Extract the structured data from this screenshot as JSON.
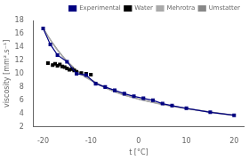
{
  "chart_data": {
    "type": "line",
    "xlabel": "t [°C]",
    "ylabel": "viscosity [mm².s⁻¹]",
    "xlim": [
      -22,
      22
    ],
    "ylim": [
      2,
      18
    ],
    "xticks": [
      -20,
      -10,
      0,
      10,
      20
    ],
    "yticks": [
      2,
      4,
      6,
      8,
      10,
      12,
      14,
      16,
      18
    ],
    "grid": false,
    "legend": "upper right",
    "series": [
      {
        "name": "Experimental",
        "type": "line",
        "color": "#000080",
        "marker": "square",
        "line_style": "solid",
        "x": [
          -20,
          -18.5,
          -17,
          -15,
          -13,
          -11,
          -9,
          -7,
          -5,
          -3,
          -1,
          1,
          3,
          5,
          7,
          10,
          15,
          20
        ],
        "values": [
          16.8,
          14.4,
          12.8,
          11.8,
          10.0,
          9.8,
          8.5,
          8.0,
          7.5,
          7.0,
          6.6,
          6.3,
          6.0,
          5.5,
          5.2,
          4.8,
          4.2,
          3.75
        ]
      },
      {
        "name": "Water",
        "type": "scatter",
        "color": "#000000",
        "marker": "square",
        "x": [
          -19,
          -18,
          -17.5,
          -17,
          -16.5,
          -16,
          -15.5,
          -15,
          -14.5,
          -14,
          -13.5,
          -13,
          -12,
          -11,
          -10
        ],
        "values": [
          11.6,
          11.3,
          11.5,
          11.2,
          11.4,
          11.1,
          11.0,
          10.8,
          10.6,
          10.7,
          10.5,
          10.3,
          10.1,
          10.0,
          9.85
        ]
      },
      {
        "name": "Mehrotra",
        "type": "line",
        "color": "#aaaaaa",
        "marker": "none",
        "line_style": "solid",
        "x": [
          -20,
          -19,
          -18,
          -17,
          -16,
          -15,
          -14,
          -13,
          -12,
          -11,
          -10,
          -9,
          -8,
          -7,
          -6,
          -5,
          -4,
          -3,
          -2,
          -1,
          0,
          1,
          2,
          3,
          4,
          5,
          6,
          7,
          8,
          9,
          10,
          12,
          15,
          17,
          20
        ],
        "values": [
          16.8,
          15.6,
          14.5,
          13.5,
          12.6,
          11.8,
          11.1,
          10.4,
          9.9,
          9.4,
          9.0,
          8.6,
          8.2,
          7.85,
          7.55,
          7.25,
          7.0,
          6.75,
          6.55,
          6.35,
          6.15,
          5.98,
          5.82,
          5.65,
          5.5,
          5.35,
          5.22,
          5.1,
          4.97,
          4.85,
          4.73,
          4.52,
          4.2,
          4.0,
          3.72
        ]
      },
      {
        "name": "Umstatter",
        "type": "line",
        "color": "#888888",
        "marker": "none",
        "line_style": "solid",
        "x": [
          -20,
          -19,
          -18,
          -17,
          -16,
          -15,
          -14,
          -13,
          -12,
          -11,
          -10,
          -9,
          -8,
          -7,
          -6,
          -5,
          -4,
          -3,
          -2,
          -1,
          0,
          1,
          2,
          3,
          4,
          5,
          6,
          7,
          8,
          9,
          10,
          12,
          15,
          17,
          20
        ],
        "values": [
          16.9,
          15.7,
          14.6,
          13.6,
          12.7,
          11.9,
          11.2,
          10.5,
          10.0,
          9.5,
          9.1,
          8.7,
          8.3,
          7.9,
          7.6,
          7.3,
          7.05,
          6.8,
          6.6,
          6.4,
          6.2,
          6.03,
          5.87,
          5.7,
          5.55,
          5.4,
          5.27,
          5.15,
          5.02,
          4.9,
          4.78,
          4.57,
          4.25,
          4.05,
          3.77
        ]
      }
    ]
  }
}
